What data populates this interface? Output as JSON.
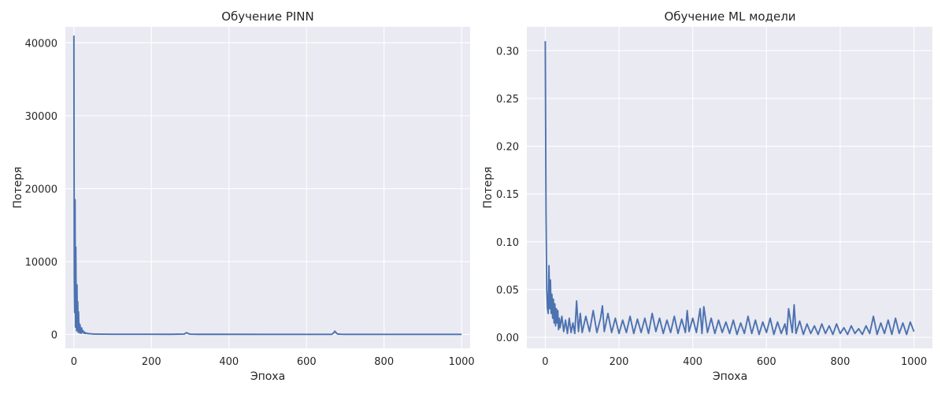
{
  "colors": {
    "background": "#ffffff",
    "panel": "#eaeaf2",
    "grid": "#ffffff",
    "series": "#4c72b0",
    "text": "#262626"
  },
  "chart_data": [
    {
      "type": "line",
      "title": "Обучение PINN",
      "xlabel": "Эпоха",
      "ylabel": "Потеря",
      "xlim": [
        -22,
        1022
      ],
      "ylim": [
        -1900,
        42200
      ],
      "xticks": [
        0,
        200,
        400,
        600,
        800,
        1000
      ],
      "yticks": [
        0,
        10000,
        20000,
        30000,
        40000
      ],
      "grid": true,
      "series": [
        {
          "x": [
            0,
            1,
            2,
            3,
            4,
            5,
            6,
            7,
            8,
            9,
            10,
            11,
            12,
            13,
            14,
            15,
            16,
            17,
            18,
            19,
            20,
            22,
            24,
            26,
            28,
            30,
            33,
            36,
            40,
            45,
            50,
            60,
            70,
            80,
            100,
            150,
            200,
            250,
            285,
            290,
            295,
            300,
            320,
            400,
            500,
            600,
            665,
            670,
            673,
            676,
            680,
            690,
            700,
            800,
            900,
            1000
          ],
          "y": [
            41000,
            8000,
            3000,
            18500,
            1000,
            12000,
            2500,
            500,
            6800,
            1200,
            4500,
            300,
            3100,
            900,
            1500,
            200,
            1300,
            400,
            700,
            150,
            900,
            300,
            500,
            150,
            300,
            120,
            200,
            100,
            120,
            80,
            60,
            50,
            40,
            35,
            30,
            25,
            22,
            20,
            50,
            250,
            120,
            40,
            20,
            18,
            15,
            14,
            20,
            200,
            450,
            250,
            60,
            25,
            15,
            12,
            10,
            10
          ]
        }
      ]
    },
    {
      "type": "line",
      "title": "Обучение ML модели",
      "xlabel": "Эпоха",
      "ylabel": "Потеря",
      "xlim": [
        -50,
        1050
      ],
      "ylim": [
        -0.0115,
        0.325
      ],
      "xticks": [
        0,
        200,
        400,
        600,
        800,
        1000
      ],
      "yticks": [
        0.0,
        0.05,
        0.1,
        0.15,
        0.2,
        0.25,
        0.3
      ],
      "yticklabels": [
        "0.00",
        "0.05",
        "0.10",
        "0.15",
        "0.20",
        "0.25",
        "0.30"
      ],
      "grid": true,
      "series": [
        {
          "x": [
            0,
            2,
            4,
            6,
            8,
            10,
            12,
            14,
            16,
            18,
            20,
            22,
            24,
            26,
            28,
            30,
            32,
            34,
            36,
            38,
            40,
            45,
            50,
            55,
            60,
            65,
            70,
            75,
            80,
            85,
            90,
            95,
            100,
            110,
            120,
            130,
            140,
            150,
            155,
            160,
            170,
            180,
            190,
            200,
            210,
            220,
            230,
            240,
            250,
            260,
            270,
            280,
            290,
            300,
            310,
            320,
            330,
            340,
            350,
            360,
            370,
            380,
            385,
            390,
            400,
            410,
            420,
            425,
            430,
            440,
            450,
            460,
            470,
            480,
            490,
            500,
            510,
            520,
            530,
            540,
            550,
            560,
            570,
            580,
            590,
            600,
            610,
            620,
            630,
            640,
            650,
            655,
            660,
            670,
            675,
            680,
            690,
            700,
            710,
            720,
            730,
            740,
            750,
            760,
            770,
            780,
            790,
            800,
            810,
            820,
            830,
            840,
            850,
            860,
            870,
            880,
            890,
            900,
            910,
            920,
            930,
            940,
            950,
            960,
            970,
            980,
            990,
            1000
          ],
          "y": [
            0.31,
            0.13,
            0.05,
            0.03,
            0.025,
            0.075,
            0.03,
            0.06,
            0.025,
            0.045,
            0.02,
            0.04,
            0.015,
            0.035,
            0.012,
            0.03,
            0.015,
            0.028,
            0.008,
            0.02,
            0.01,
            0.022,
            0.006,
            0.018,
            0.004,
            0.02,
            0.005,
            0.015,
            0.004,
            0.038,
            0.006,
            0.025,
            0.005,
            0.022,
            0.006,
            0.028,
            0.005,
            0.02,
            0.033,
            0.006,
            0.025,
            0.005,
            0.02,
            0.004,
            0.018,
            0.005,
            0.022,
            0.004,
            0.019,
            0.005,
            0.02,
            0.004,
            0.025,
            0.006,
            0.02,
            0.004,
            0.018,
            0.005,
            0.022,
            0.004,
            0.019,
            0.005,
            0.028,
            0.006,
            0.02,
            0.005,
            0.03,
            0.004,
            0.032,
            0.005,
            0.02,
            0.004,
            0.018,
            0.005,
            0.016,
            0.004,
            0.018,
            0.003,
            0.015,
            0.004,
            0.022,
            0.004,
            0.018,
            0.003,
            0.016,
            0.005,
            0.02,
            0.003,
            0.016,
            0.004,
            0.014,
            0.003,
            0.03,
            0.005,
            0.034,
            0.004,
            0.017,
            0.003,
            0.014,
            0.004,
            0.012,
            0.003,
            0.014,
            0.004,
            0.012,
            0.003,
            0.014,
            0.004,
            0.01,
            0.003,
            0.012,
            0.004,
            0.009,
            0.003,
            0.012,
            0.004,
            0.022,
            0.003,
            0.015,
            0.004,
            0.018,
            0.003,
            0.02,
            0.004,
            0.015,
            0.003,
            0.016,
            0.006
          ]
        }
      ]
    }
  ]
}
